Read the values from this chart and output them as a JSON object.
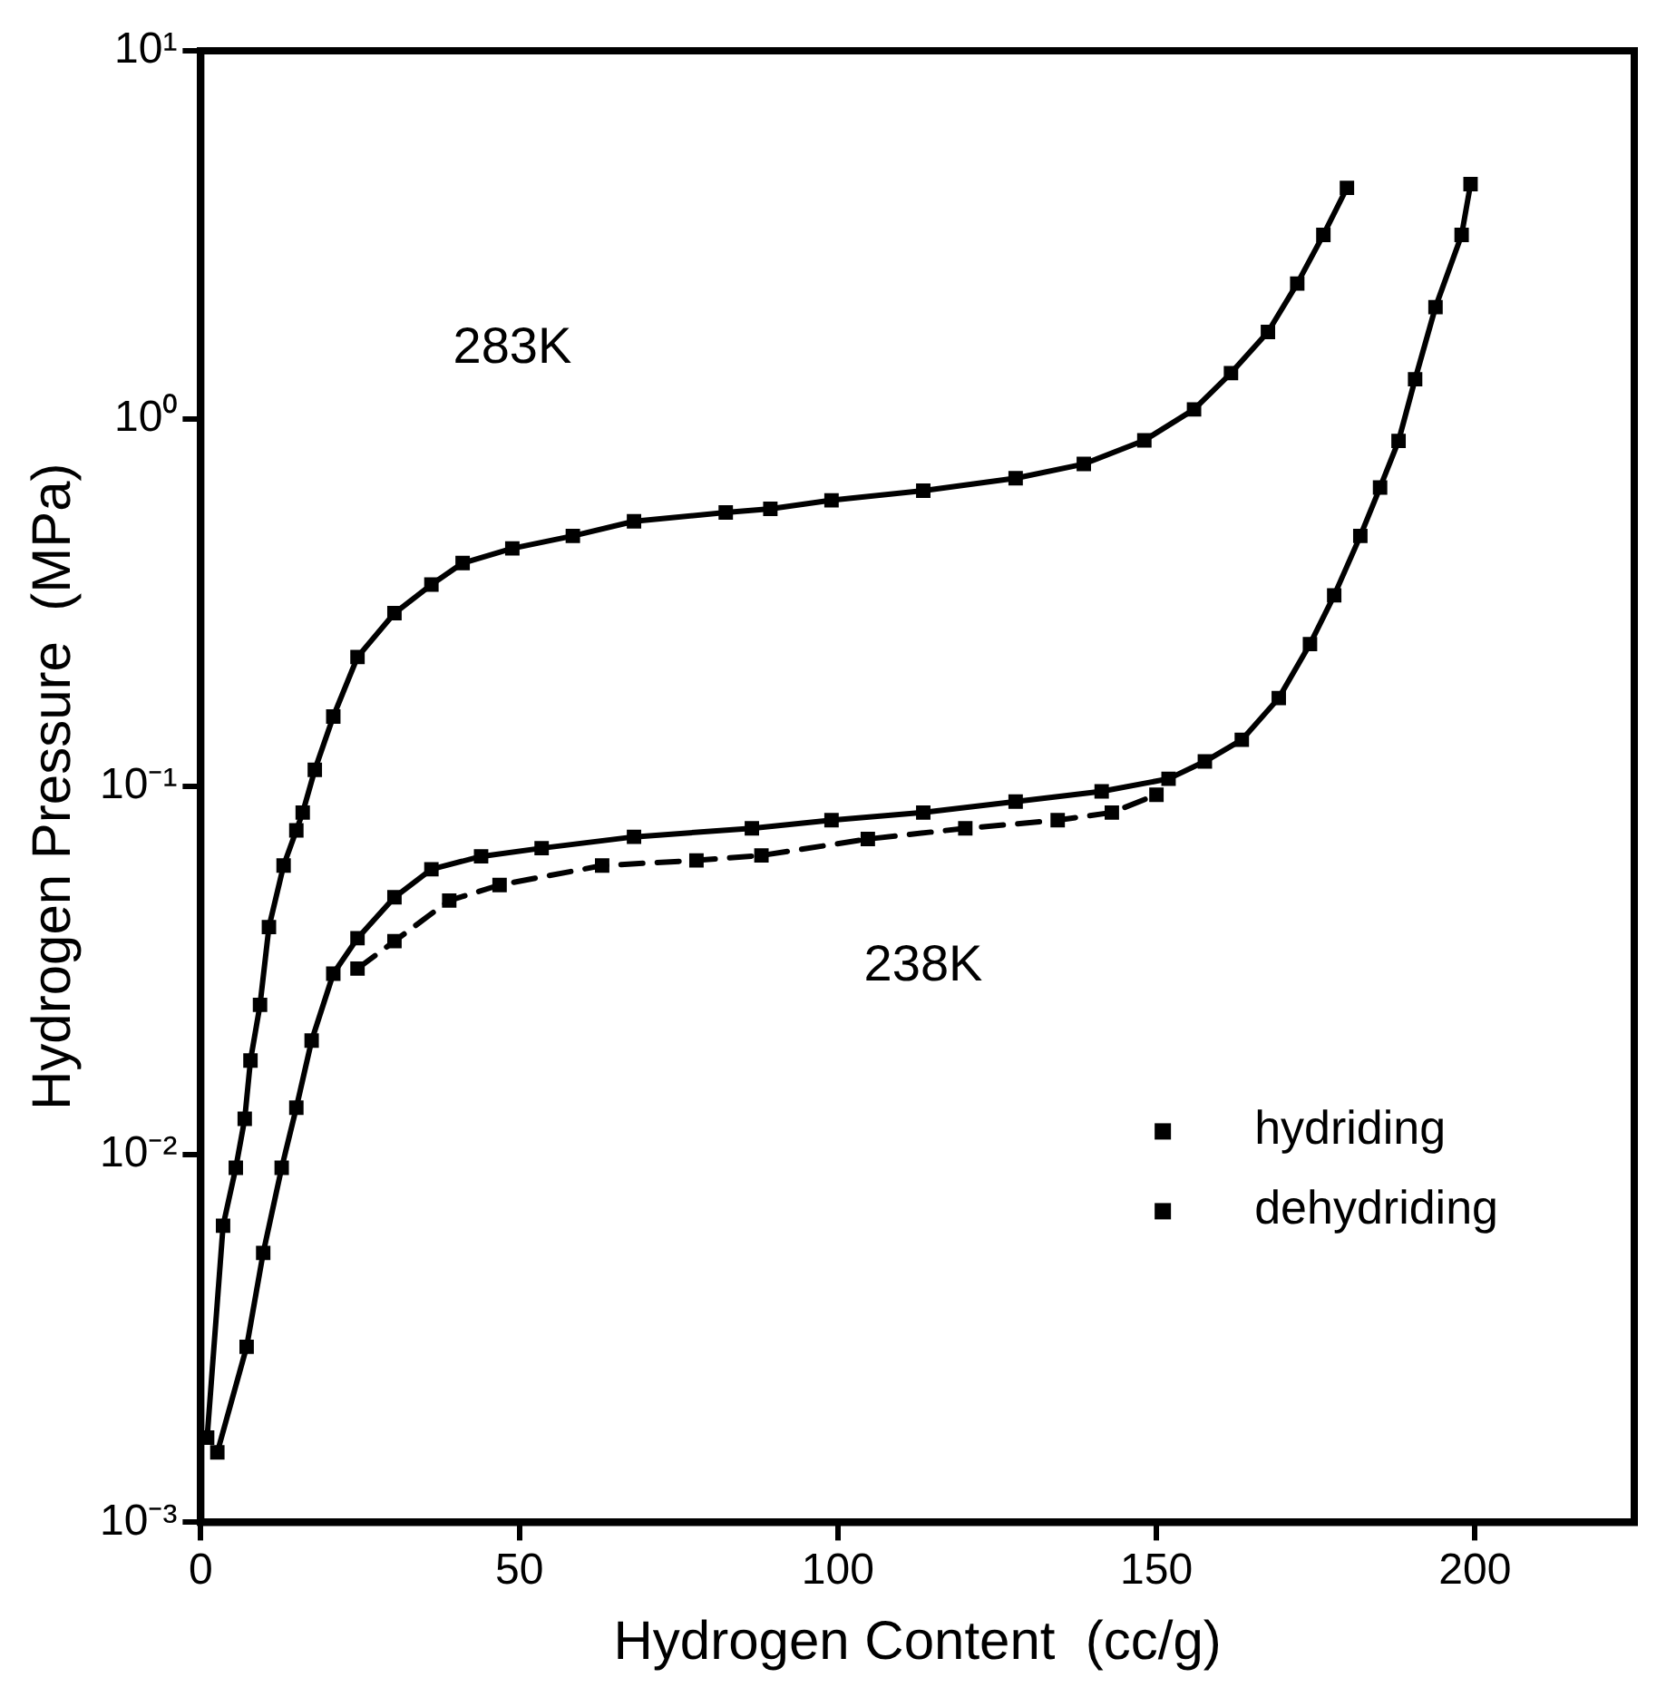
{
  "chart_data": {
    "type": "line",
    "xlabel": "Hydrogen Content  (cc/g)",
    "ylabel": "Hydrogen Pressure  (MPa)",
    "log": "y",
    "grid": false,
    "legend": "bottom right",
    "marker": "square",
    "xlim": [
      0,
      225
    ],
    "xticks": [
      0,
      50,
      100,
      150,
      200
    ],
    "ylim": [
      0.001,
      10
    ],
    "yticks": [
      {
        "value": 0.001,
        "label": "10⁻³"
      },
      {
        "value": 0.01,
        "label": "10⁻²"
      },
      {
        "value": 0.1,
        "label": "10⁻¹"
      },
      {
        "value": 1,
        "label": "10⁰"
      },
      {
        "value": 10,
        "label": "10¹"
      }
    ],
    "series": [
      {
        "color": "#000000",
        "line_style": "solid",
        "x": [
          1,
          3.5,
          5.5,
          6.9,
          7.8,
          9.3,
          10.7,
          13,
          15,
          16,
          17.9,
          20.8,
          24.6,
          30.4,
          36.2,
          41.1,
          48.9,
          58.4,
          68,
          82.4,
          89.4,
          99,
          113.4,
          127.9,
          138.6,
          148.1,
          155.9,
          161.7,
          167.5,
          172.1,
          176.2,
          179.9
        ],
        "values": [
          0.0017,
          0.0064,
          0.0092,
          0.0125,
          0.018,
          0.0255,
          0.0415,
          0.061,
          0.076,
          0.085,
          0.111,
          0.155,
          0.225,
          0.296,
          0.354,
          0.405,
          0.444,
          0.48,
          0.526,
          0.556,
          0.569,
          0.6,
          0.637,
          0.689,
          0.753,
          0.873,
          1.06,
          1.33,
          1.72,
          2.33,
          3.16,
          4.24
        ]
      },
      {
        "name": "hydriding",
        "color": "#000000",
        "line_style": "solid",
        "x": [
          2.6,
          7.2,
          9.8,
          12.7,
          15,
          17.4,
          20.8,
          24.6,
          30.4,
          36.2,
          44,
          53.5,
          68,
          86.5,
          99,
          113.4,
          127.9,
          141.4,
          151.9,
          157.6,
          163.4,
          169.2,
          174.1,
          177.9,
          182,
          185.1,
          188,
          190.6,
          193.8,
          197.9,
          199.3
        ],
        "values": [
          0.00155,
          0.003,
          0.0054,
          0.0092,
          0.0134,
          0.0204,
          0.031,
          0.0387,
          0.05,
          0.0596,
          0.0646,
          0.068,
          0.073,
          0.077,
          0.081,
          0.085,
          0.091,
          0.097,
          0.105,
          0.117,
          0.134,
          0.174,
          0.244,
          0.331,
          0.48,
          0.65,
          0.87,
          1.28,
          2.01,
          3.16,
          4.34
        ]
      },
      {
        "name": "dehydriding",
        "color": "#000000",
        "line_style": "dashed",
        "x": [
          24.6,
          30.4,
          39,
          46.9,
          63,
          77.8,
          88,
          104.7,
          120,
          134.5,
          143,
          150
        ],
        "values": [
          0.032,
          0.038,
          0.049,
          0.054,
          0.061,
          0.063,
          0.065,
          0.072,
          0.077,
          0.081,
          0.085,
          0.095
        ]
      }
    ],
    "annotations": [
      "283K",
      "238K"
    ]
  }
}
